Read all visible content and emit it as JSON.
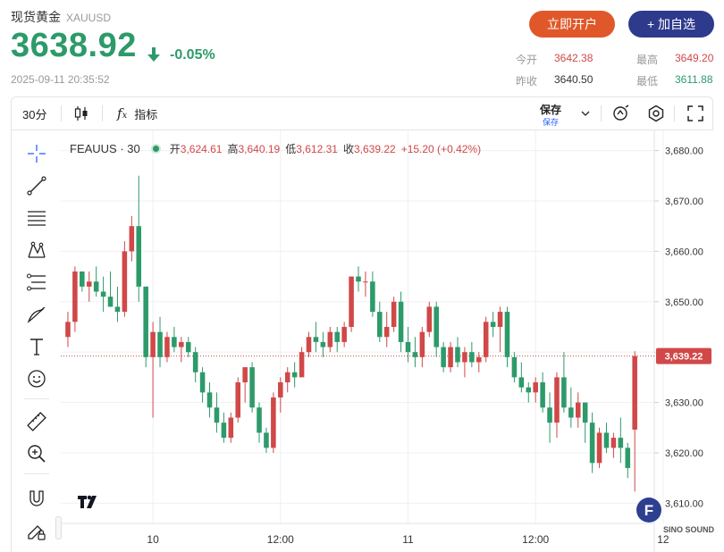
{
  "header": {
    "title": "现货黄金",
    "symbol": "XAUUSD",
    "price": "3638.92",
    "change": "-0.05%",
    "timestamp": "2025-09-11 20:35:52",
    "btn_open": "立即开户",
    "btn_add": "+ 加自选",
    "stats": {
      "open_label": "今开",
      "open": "3642.38",
      "prev_label": "昨收",
      "prev": "3640.50",
      "high_label": "最高",
      "high": "3649.20",
      "low_label": "最低",
      "low": "3611.88"
    },
    "colors": {
      "up": "#d04848",
      "down": "#2d9a6a",
      "open_btn": "#e0582a",
      "add_btn": "#2e3a8c"
    }
  },
  "toolbar": {
    "interval": "30分",
    "indicator_label": "指标",
    "save_label": "保存",
    "save_sub": "保存",
    "icons": [
      "candles-icon",
      "fx-icon",
      "chevron-down-icon",
      "alert-icon",
      "settings-icon",
      "fullscreen-icon"
    ]
  },
  "left_tools": [
    "crosshair-icon",
    "trendline-icon",
    "horizontal-lines-icon",
    "pattern-icon",
    "fib-icon",
    "brush-icon",
    "text-icon",
    "emoji-icon",
    "ruler-icon",
    "zoom-in-icon",
    "magnet-icon",
    "lock-pencil-icon"
  ],
  "legend": {
    "name": "FEAUUS · 30",
    "open_label": "开",
    "open": "3,624.61",
    "high_label": "高",
    "high": "3,640.19",
    "low_label": "低",
    "low": "3,612.31",
    "close_label": "收",
    "close": "3,639.22",
    "change": "+15.20 (+0.42%)"
  },
  "watermark": {
    "text": "SINO SOUND"
  },
  "chart_data": {
    "type": "candlestick",
    "ylim": [
      3606,
      3684
    ],
    "y_ticks": [
      "3,610.00",
      "3,620.00",
      "3,630.00",
      "3,640.00",
      "3,650.00",
      "3,660.00",
      "3,670.00",
      "3,680.00"
    ],
    "x_ticks": [
      {
        "label": "10",
        "index": 12
      },
      {
        "label": "12:00",
        "index": 30
      },
      {
        "label": "11",
        "index": 48
      },
      {
        "label": "12:00",
        "index": 66
      },
      {
        "label": "12",
        "index": 84
      }
    ],
    "last_price_label": "3,639.22",
    "last_price": 3639.22,
    "candles": [
      [
        3643,
        3648,
        3641,
        3646
      ],
      [
        3646,
        3657,
        3644,
        3656
      ],
      [
        3656,
        3656,
        3652,
        3653
      ],
      [
        3653,
        3656,
        3650,
        3654
      ],
      [
        3654,
        3657,
        3651,
        3652
      ],
      [
        3652,
        3655,
        3648,
        3651
      ],
      [
        3651,
        3656,
        3649,
        3649
      ],
      [
        3649,
        3653,
        3646,
        3648
      ],
      [
        3648,
        3662,
        3647,
        3660
      ],
      [
        3660,
        3667,
        3658,
        3665
      ],
      [
        3665,
        3675,
        3650,
        3653
      ],
      [
        3653,
        3653,
        3637,
        3639
      ],
      [
        3639,
        3646,
        3627,
        3644
      ],
      [
        3644,
        3647,
        3637,
        3639
      ],
      [
        3639,
        3644,
        3638,
        3643
      ],
      [
        3643,
        3645,
        3640,
        3641
      ],
      [
        3641,
        3643,
        3638,
        3642
      ],
      [
        3642,
        3643,
        3639,
        3640
      ],
      [
        3640,
        3641,
        3634,
        3636
      ],
      [
        3636,
        3637,
        3630,
        3632
      ],
      [
        3632,
        3634,
        3627,
        3629
      ],
      [
        3629,
        3632,
        3624,
        3626
      ],
      [
        3626,
        3628,
        3622,
        3623
      ],
      [
        3623,
        3628,
        3622,
        3627
      ],
      [
        3627,
        3635,
        3626,
        3634
      ],
      [
        3634,
        3637,
        3630,
        3637
      ],
      [
        3637,
        3638,
        3628,
        3629
      ],
      [
        3629,
        3630,
        3622,
        3624
      ],
      [
        3624,
        3625,
        3620,
        3621
      ],
      [
        3621,
        3632,
        3620,
        3631
      ],
      [
        3631,
        3635,
        3628,
        3634
      ],
      [
        3634,
        3637,
        3632,
        3636
      ],
      [
        3636,
        3638,
        3633,
        3635
      ],
      [
        3635,
        3641,
        3635,
        3640
      ],
      [
        3640,
        3644,
        3639,
        3643
      ],
      [
        3643,
        3646,
        3640,
        3642
      ],
      [
        3642,
        3644,
        3639,
        3641
      ],
      [
        3641,
        3645,
        3640,
        3644
      ],
      [
        3644,
        3645,
        3640,
        3642
      ],
      [
        3642,
        3646,
        3641,
        3645
      ],
      [
        3645,
        3655,
        3644,
        3655
      ],
      [
        3655,
        3657,
        3652,
        3654
      ],
      [
        3654,
        3656,
        3651,
        3654
      ],
      [
        3654,
        3656,
        3647,
        3648
      ],
      [
        3648,
        3650,
        3642,
        3643
      ],
      [
        3643,
        3648,
        3641,
        3645
      ],
      [
        3645,
        3651,
        3644,
        3650
      ],
      [
        3650,
        3652,
        3640,
        3642
      ],
      [
        3642,
        3645,
        3638,
        3640
      ],
      [
        3640,
        3643,
        3637,
        3639
      ],
      [
        3639,
        3645,
        3637,
        3644
      ],
      [
        3644,
        3650,
        3643,
        3649
      ],
      [
        3649,
        3650,
        3639,
        3641
      ],
      [
        3641,
        3642,
        3636,
        3637
      ],
      [
        3637,
        3642,
        3636,
        3641
      ],
      [
        3641,
        3643,
        3637,
        3638
      ],
      [
        3638,
        3641,
        3635,
        3640
      ],
      [
        3640,
        3642,
        3637,
        3638
      ],
      [
        3638,
        3640,
        3636,
        3639
      ],
      [
        3639,
        3647,
        3638,
        3646
      ],
      [
        3646,
        3648,
        3643,
        3645
      ],
      [
        3645,
        3649,
        3640,
        3648
      ],
      [
        3648,
        3649,
        3637,
        3639
      ],
      [
        3639,
        3640,
        3634,
        3635
      ],
      [
        3635,
        3638,
        3632,
        3633
      ],
      [
        3633,
        3634,
        3630,
        3632
      ],
      [
        3632,
        3635,
        3630,
        3634
      ],
      [
        3634,
        3636,
        3628,
        3629
      ],
      [
        3629,
        3632,
        3622,
        3626
      ],
      [
        3626,
        3636,
        3623,
        3635
      ],
      [
        3635,
        3640,
        3628,
        3629
      ],
      [
        3629,
        3633,
        3625,
        3627
      ],
      [
        3627,
        3632,
        3625,
        3630
      ],
      [
        3630,
        3630,
        3622,
        3626
      ],
      [
        3626,
        3628,
        3616,
        3618
      ],
      [
        3618,
        3625,
        3617,
        3624
      ],
      [
        3624,
        3626,
        3620,
        3621
      ],
      [
        3621,
        3624,
        3619,
        3623
      ],
      [
        3623,
        3627,
        3618,
        3621
      ],
      [
        3621,
        3622,
        3615,
        3617
      ],
      [
        3624.61,
        3640.19,
        3612.31,
        3639.22
      ]
    ]
  }
}
